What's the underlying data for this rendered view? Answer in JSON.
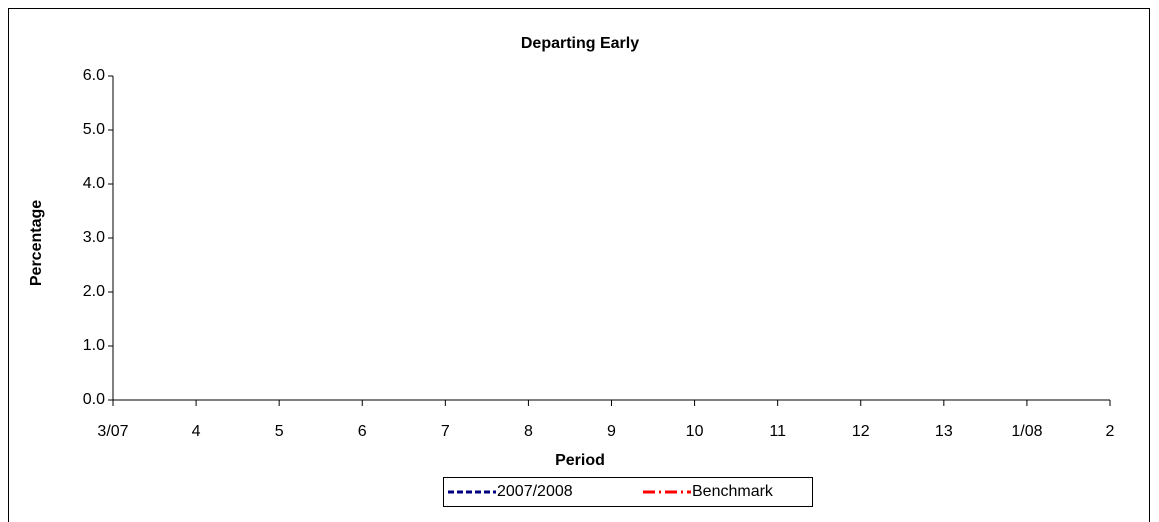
{
  "chart_data": {
    "type": "line",
    "title": "Departing Early",
    "x_label": "Period",
    "y_label": "Percentage",
    "categories": [
      "3/07",
      "4",
      "5",
      "6",
      "7",
      "8",
      "9",
      "10",
      "11",
      "12",
      "13",
      "1/08",
      "2"
    ],
    "series": [
      {
        "name": "2007/2008",
        "color": "#000080",
        "values": [
          null,
          null,
          null,
          null,
          null,
          null,
          null,
          null,
          null,
          null,
          null,
          null,
          null
        ]
      },
      {
        "name": "Benchmark",
        "color": "#ff0000",
        "values": [
          null,
          null,
          null,
          null,
          null,
          null,
          null,
          null,
          null,
          null,
          null,
          null,
          null
        ]
      }
    ],
    "ylim": [
      0,
      6
    ],
    "yticks": [
      {
        "value": 0,
        "label": "0.0"
      },
      {
        "value": 1,
        "label": "1.0"
      },
      {
        "value": 2,
        "label": "2.0"
      },
      {
        "value": 3,
        "label": "3.0"
      },
      {
        "value": 4,
        "label": "4.0"
      },
      {
        "value": 5,
        "label": "5.0"
      },
      {
        "value": 6,
        "label": "6.0"
      }
    ],
    "grid": false,
    "legend": "bottom"
  }
}
